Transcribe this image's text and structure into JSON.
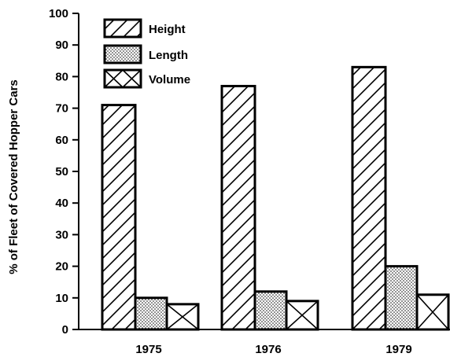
{
  "chart_data": {
    "type": "bar",
    "title": "",
    "xlabel": "",
    "ylabel": "% of Fleet of Covered Hopper Cars",
    "ylim": [
      0,
      100
    ],
    "yticks": [
      0,
      10,
      20,
      30,
      40,
      50,
      60,
      70,
      80,
      90,
      100
    ],
    "categories": [
      "1975",
      "1976",
      "1979"
    ],
    "series": [
      {
        "name": "Height",
        "pattern": "diagonal-hatch",
        "values": [
          71,
          77,
          83
        ]
      },
      {
        "name": "Length",
        "pattern": "dotted",
        "values": [
          10,
          12,
          20
        ]
      },
      {
        "name": "Volume",
        "pattern": "cross-hatch",
        "values": [
          8,
          9,
          11
        ]
      }
    ],
    "legend_position": "top-left",
    "grid": false,
    "colors": {
      "ink": "#000000",
      "fill": "#ffffff"
    }
  }
}
